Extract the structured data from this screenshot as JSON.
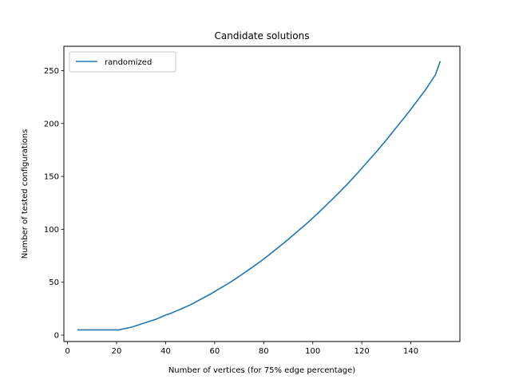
{
  "chart_data": {
    "type": "line",
    "title": "Candidate solutions",
    "xlabel": "Number of vertices (for 75% edge percentage)",
    "ylabel": "Number of tested configurations",
    "xlim": [
      -1.5,
      160
    ],
    "ylim": [
      -6,
      273
    ],
    "xticks": [
      0,
      20,
      40,
      60,
      80,
      100,
      120,
      140
    ],
    "yticks": [
      0,
      50,
      100,
      150,
      200,
      250
    ],
    "grid": false,
    "legend_position": "upper left",
    "series": [
      {
        "name": "randomized",
        "color": "#1f77b4",
        "x": [
          4,
          10,
          16,
          21,
          22,
          24,
          26,
          28,
          30,
          32,
          34,
          36,
          38,
          40,
          42,
          44,
          46,
          48,
          50,
          54,
          58,
          62,
          66,
          70,
          74,
          78,
          82,
          86,
          90,
          94,
          98,
          102,
          106,
          110,
          114,
          118,
          122,
          126,
          130,
          134,
          138,
          142,
          146,
          150,
          152
        ],
        "y": [
          5,
          5,
          5,
          5,
          5.5,
          6.5,
          7.5,
          9,
          10.5,
          12,
          13.5,
          15,
          17,
          19,
          20.5,
          22.5,
          24.5,
          26.5,
          28.5,
          33.5,
          38.5,
          44,
          49.5,
          55.5,
          62,
          68.5,
          75.5,
          83,
          90.5,
          98.5,
          106.5,
          115,
          124,
          133,
          142.5,
          152.5,
          163,
          173.5,
          184.5,
          196,
          207.5,
          219.5,
          232,
          246,
          259
        ]
      }
    ]
  }
}
